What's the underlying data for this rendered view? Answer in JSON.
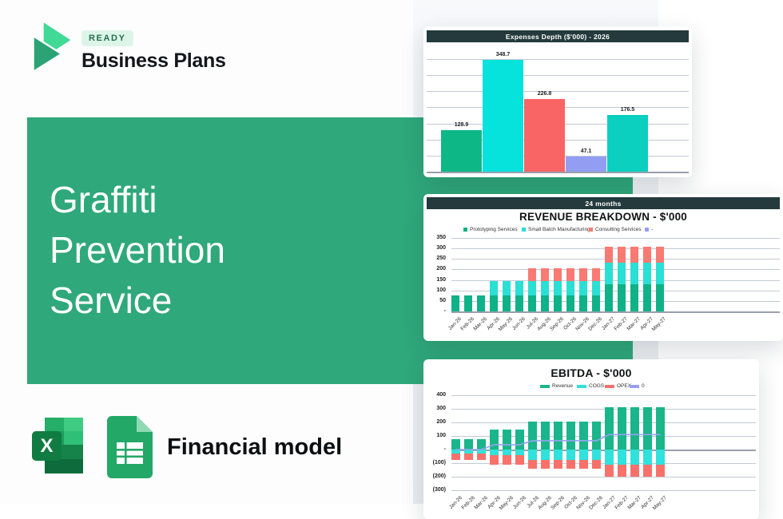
{
  "brand": {
    "badge": "READY",
    "name": "Business Plans"
  },
  "hero": {
    "lines": [
      "Graffiti",
      "Prevention",
      "Service"
    ]
  },
  "product": {
    "label": "Financial model"
  },
  "colors": {
    "panel_green": "#2fa87b",
    "card_header_dark": "#243a3c",
    "right_background": "#edf0f4",
    "logo_light_green": "#40d995",
    "logo_dark_green": "#2ca374",
    "excel_green": "#107c41",
    "sheets_green": "#23a867"
  },
  "chart_data": [
    {
      "type": "bar",
      "title": "Expenses Depth ($'000) - 2026",
      "values": [
        128.9,
        348.7,
        226.8,
        47.1,
        176.5
      ],
      "value_labels": [
        "128.9",
        "348.7",
        "226.8",
        "47.1",
        "176.5"
      ],
      "bar_colors": [
        "#0db886",
        "#06e2dc",
        "#f96565",
        "#939ef2",
        "#0bcfbf"
      ],
      "ylim": [
        0,
        350
      ],
      "grid_step": 50,
      "grid": "on",
      "legend_position": "none"
    },
    {
      "type": "bar",
      "stacked": true,
      "header": "24 months",
      "title": "REVENUE BREAKDOWN - $'000",
      "legend": [
        "Prototyping Services",
        "Small Batch Manufacturing",
        "Consulting Services",
        "-"
      ],
      "legend_colors": [
        "#0eb286",
        "#2adfd4",
        "#f97a72",
        "#95a0f2"
      ],
      "legend_position": "top",
      "categories": [
        "Jan-26",
        "Feb-26",
        "Mar-26",
        "Apr-26",
        "May-26",
        "Jun-26",
        "Jul-26",
        "Aug-26",
        "Sep-26",
        "Oct-26",
        "Nov-26",
        "Dec-26",
        "Jan-27",
        "Feb-27",
        "Mar-27",
        "Apr-27",
        "May-27"
      ],
      "series": [
        {
          "name": "Prototyping Services",
          "color": "#0eb286",
          "values": [
            75,
            75,
            75,
            75,
            75,
            75,
            75,
            75,
            75,
            75,
            75,
            75,
            128,
            128,
            128,
            128,
            128
          ]
        },
        {
          "name": "Small Batch Manufacturing",
          "color": "#2adfd4",
          "values": [
            0,
            0,
            0,
            70,
            70,
            70,
            70,
            70,
            70,
            70,
            70,
            70,
            104,
            104,
            104,
            104,
            104
          ]
        },
        {
          "name": "Consulting Services",
          "color": "#f97a72",
          "values": [
            0,
            0,
            0,
            0,
            0,
            0,
            60,
            60,
            60,
            60,
            60,
            60,
            76,
            76,
            76,
            76,
            76
          ]
        }
      ],
      "ytick_labels": [
        "350",
        "300",
        "250",
        "200",
        "150",
        "100",
        "50",
        "-"
      ],
      "ytick_values": [
        350,
        300,
        250,
        200,
        150,
        100,
        50,
        0
      ],
      "ylim": [
        0,
        350
      ],
      "grid": "on"
    },
    {
      "type": "bar",
      "stacked": true,
      "title": "EBITDA - $'000",
      "legend": [
        "Revenue",
        "COGS",
        "OPEX",
        "0"
      ],
      "legend_colors": [
        "#1ab58a",
        "#30e2dc",
        "#f8716b",
        "#97a1ef"
      ],
      "legend_position": "top",
      "categories": [
        "Jan-26",
        "Feb-26",
        "Mar-26",
        "Apr-26",
        "May-26",
        "Jun-26",
        "Jul-26",
        "Aug-26",
        "Sep-26",
        "Oct-26",
        "Nov-26",
        "Dec-26",
        "Jan-27",
        "Feb-27",
        "Mar-27",
        "Apr-27",
        "May-27"
      ],
      "series": [
        {
          "name": "Revenue",
          "color": "#1ab58a",
          "values": [
            75,
            75,
            75,
            145,
            145,
            145,
            205,
            205,
            205,
            205,
            205,
            205,
            310,
            310,
            310,
            310,
            310
          ]
        },
        {
          "name": "COGS",
          "color": "#30e2dc",
          "values": [
            -30,
            -30,
            -30,
            -40,
            -40,
            -40,
            -75,
            -75,
            -75,
            -75,
            -75,
            -75,
            -110,
            -110,
            -110,
            -110,
            -110
          ]
        },
        {
          "name": "OPEX",
          "color": "#f8716b",
          "values": [
            -45,
            -45,
            -45,
            -70,
            -70,
            -70,
            -65,
            -65,
            -65,
            -65,
            -65,
            -65,
            -90,
            -90,
            -90,
            -90,
            -90
          ]
        }
      ],
      "line": {
        "name": "0",
        "color": "#97a1ef",
        "values": [
          0,
          0,
          0,
          35,
          35,
          35,
          65,
          65,
          65,
          65,
          65,
          65,
          110,
          110,
          110,
          110,
          110
        ]
      },
      "ytick_labels": [
        "400",
        "300",
        "200",
        "100",
        "-",
        "(100)",
        "(200)",
        "(300)"
      ],
      "ytick_values": [
        400,
        300,
        200,
        100,
        0,
        -100,
        -200,
        -300
      ],
      "ylim": [
        -300,
        400
      ],
      "grid": "on"
    }
  ]
}
